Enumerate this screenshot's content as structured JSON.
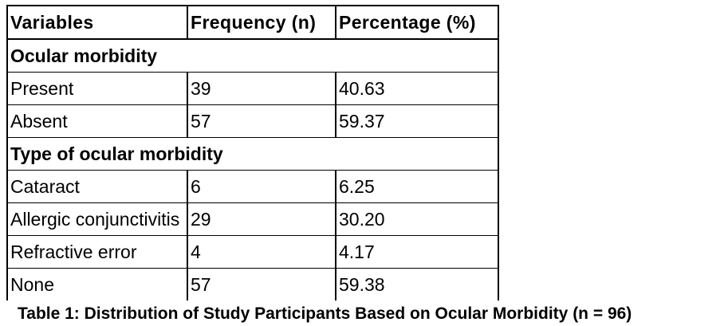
{
  "table": {
    "headers": [
      "Variables",
      "Frequency (n)",
      "Percentage (%)"
    ],
    "sections": [
      {
        "title": "Ocular morbidity",
        "rows": [
          {
            "label": "Present",
            "frequency": "39",
            "percentage": "40.63"
          },
          {
            "label": "Absent",
            "frequency": "57",
            "percentage": "59.37"
          }
        ]
      },
      {
        "title": "Type of ocular morbidity",
        "rows": [
          {
            "label": "Cataract",
            "frequency": "6",
            "percentage": "6.25"
          },
          {
            "label": "Allergic conjunctivitis",
            "frequency": "29",
            "percentage": "30.20"
          },
          {
            "label": "Refractive error",
            "frequency": "4",
            "percentage": "4.17"
          },
          {
            "label": "None",
            "frequency": "57",
            "percentage": "59.38"
          }
        ]
      }
    ]
  },
  "caption": "Table 1: Distribution of Study Participants Based on Ocular Morbidity (n = 96)"
}
